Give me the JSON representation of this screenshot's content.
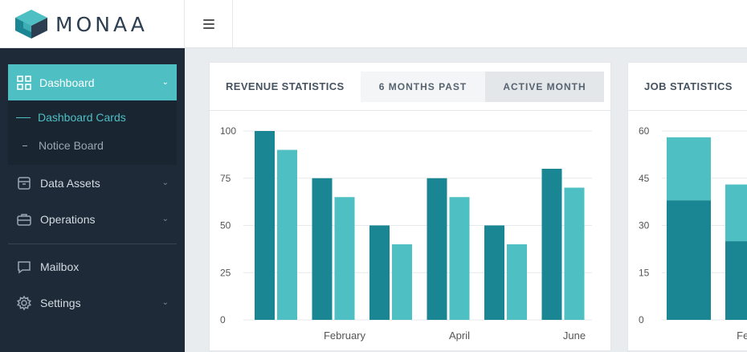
{
  "app": {
    "logo_text": "MONAA"
  },
  "sidebar": {
    "active": {
      "label": "Dashboard",
      "icon": "grid-icon"
    },
    "submenu": [
      {
        "label": "Dashboard Cards",
        "active": true
      },
      {
        "label": "Notice Board",
        "active": false
      }
    ],
    "items": [
      {
        "label": "Data Assets",
        "icon": "box-icon",
        "has_submenu": true
      },
      {
        "label": "Operations",
        "icon": "toolbox-icon",
        "has_submenu": true
      },
      {
        "label": "Mailbox",
        "icon": "chat-icon",
        "has_submenu": false
      },
      {
        "label": "Settings",
        "icon": "gear-icon",
        "has_submenu": true
      }
    ]
  },
  "revenue": {
    "title": "REVENUE STATISTICS",
    "tabs": [
      "6 MONTHS PAST",
      "ACTIVE MONTH"
    ]
  },
  "jobs": {
    "title": "JOB STATISTICS"
  },
  "colors": {
    "primary": "#1a8693",
    "secondary": "#4ebfc3",
    "sidebar": "#1e2a38"
  },
  "chart_data": [
    {
      "type": "bar",
      "categories": [
        "",
        "February",
        "",
        "April",
        "",
        "June"
      ],
      "series": [
        {
          "values": [
            100,
            75,
            50,
            75,
            50,
            80
          ],
          "color": "#1a8693"
        },
        {
          "values": [
            90,
            65,
            40,
            65,
            40,
            70
          ],
          "color": "#4ebfc3"
        }
      ],
      "yticks": [
        0,
        25,
        50,
        75,
        100
      ],
      "ylim": [
        0,
        100
      ],
      "grid": true
    },
    {
      "type": "bar",
      "stacked": true,
      "categories": [
        "",
        "Febr"
      ],
      "series": [
        {
          "values": [
            38,
            25
          ],
          "color": "#1a8693"
        },
        {
          "values": [
            20,
            18
          ],
          "color": "#4ebfc3"
        }
      ],
      "yticks": [
        0,
        15,
        30,
        45,
        60
      ],
      "ylim": [
        0,
        60
      ],
      "grid": true
    }
  ]
}
